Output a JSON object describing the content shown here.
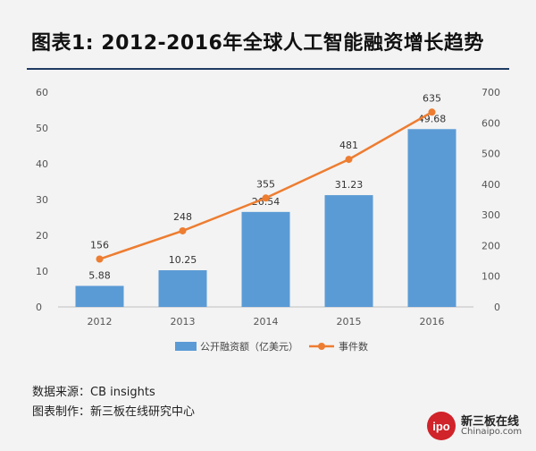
{
  "title": "图表1: 2012-2016年全球人工智能融资增长趋势",
  "source_line": "数据来源：CB insights",
  "maker_line": "图表制作：新三板在线研究中心",
  "logo": {
    "mark": "ipo",
    "name": "新三板在线",
    "url": "Chinaipo.com"
  },
  "colors": {
    "bar": "#5b9bd5",
    "line": "#ed7d31",
    "rule": "#1f3b63"
  },
  "chart_data": {
    "type": "bar+line",
    "categories": [
      "2012",
      "2013",
      "2014",
      "2015",
      "2016"
    ],
    "series": [
      {
        "name": "公开融资额（亿美元）",
        "type": "bar",
        "axis": "left",
        "values": [
          5.88,
          10.25,
          26.54,
          31.23,
          49.68
        ]
      },
      {
        "name": "事件数",
        "type": "line",
        "axis": "right",
        "values": [
          156,
          248,
          355,
          481,
          635
        ]
      }
    ],
    "y_left": {
      "min": 0,
      "max": 60,
      "ticks": [
        0,
        10,
        20,
        30,
        40,
        50,
        60
      ]
    },
    "y_right": {
      "min": 0,
      "max": 700,
      "ticks": [
        0,
        100,
        200,
        300,
        400,
        500,
        600,
        700
      ]
    },
    "legend_position": "bottom",
    "grid": false
  }
}
